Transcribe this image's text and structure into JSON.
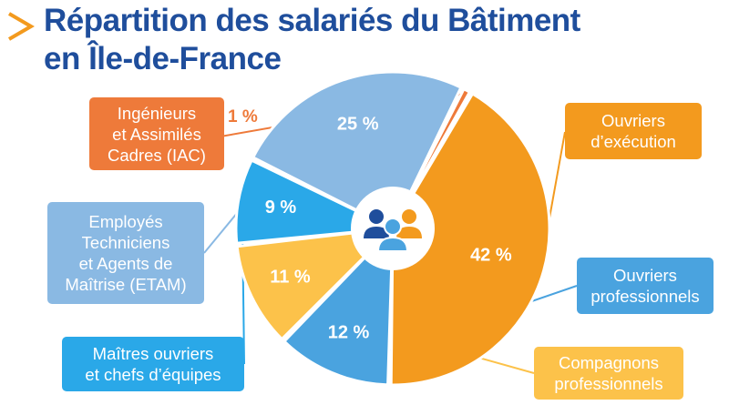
{
  "title": {
    "line1": "Répartition des salariés du Bâtiment",
    "line2": "en Île-de-France"
  },
  "colors": {
    "title": "#1f4e9c",
    "arrow": "#f39a1e",
    "ouvriers_execution": "#f39a1e",
    "ouvriers_professionnels": "#4aa3df",
    "compagnons": "#fcc24a",
    "maitres": "#2aa8e8",
    "etam": "#8ab9e3",
    "iac": "#ee7a3a",
    "icon_dark": "#1f4e9c",
    "icon_light": "#4aa3df",
    "icon_orange": "#f39a1e"
  },
  "icons": {
    "center": "people-group-icon",
    "title": "triangle-arrow-icon"
  },
  "chart_data": {
    "type": "pie",
    "title": "Répartition des salariés du Bâtiment en Île-de-France",
    "unit": "%",
    "slices": [
      {
        "label": "Ouvriers d’exécution",
        "value": 42,
        "display": "42 %",
        "color": "#f39a1e"
      },
      {
        "label": "Ouvriers professionnels",
        "value": 12,
        "display": "12 %",
        "color": "#4aa3df"
      },
      {
        "label": "Compagnons professionnels",
        "value": 11,
        "display": "11 %",
        "color": "#fcc24a"
      },
      {
        "label": "Maîtres ouvriers et chefs d’équipes",
        "value": 9,
        "display": "9 %",
        "color": "#2aa8e8"
      },
      {
        "label": "Employés Techniciens et Agents de Maîtrise (ETAM)",
        "value": 25,
        "display": "25 %",
        "color": "#8ab9e3"
      },
      {
        "label": "Ingénieurs et Assimilés Cadres (IAC)",
        "value": 1,
        "display": "1 %",
        "color": "#ee7a3a"
      }
    ]
  },
  "labels": {
    "ouvriers_execution": "Ouvriers\nd’exécution",
    "ouvriers_professionnels": "Ouvriers\nprofessionnels",
    "compagnons": "Compagnons\nprofessionnels",
    "maitres": "Maîtres ouvriers\net chefs d’équipes",
    "etam": "Employés\nTechniciens\net Agents de\nMaîtrise (ETAM)",
    "iac": "Ingénieurs\net Assimilés\nCadres (IAC)",
    "iac_pct": "1 %"
  }
}
